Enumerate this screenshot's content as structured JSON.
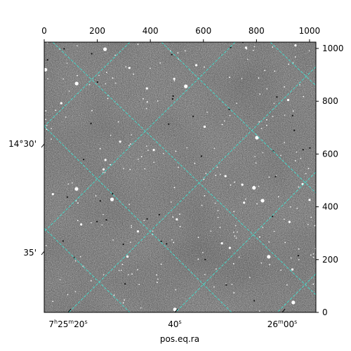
{
  "figure": {
    "xlabel": "pos.eq.ra",
    "ylabel": "",
    "pixel_axes": {
      "x_ticks": [
        "0",
        "200",
        "400",
        "600",
        "800",
        "1000"
      ],
      "x_values": [
        0,
        200,
        400,
        600,
        800,
        1000
      ],
      "y_ticks": [
        "0",
        "200",
        "400",
        "600",
        "800",
        "1000"
      ],
      "y_values": [
        0,
        200,
        400,
        600,
        800,
        1000
      ],
      "xlim": [
        0,
        1024
      ],
      "ylim": [
        0,
        1024
      ]
    },
    "world_axes": {
      "ra_ticks": [
        {
          "h": "7",
          "hs": "h",
          "m": "25",
          "ms": "m",
          "s": "20",
          "ss": "s"
        },
        {
          "h": "",
          "hs": "",
          "m": "",
          "ms": "",
          "s": "40",
          "ss": "s"
        },
        {
          "h": "",
          "hs": "",
          "m": "26",
          "ms": "m",
          "s": "00",
          "ss": "s"
        }
      ],
      "dec_ticks": [
        "14°30'",
        "35'"
      ]
    },
    "grid": {
      "on": true,
      "color": "#40e0d0",
      "style": "dashed"
    },
    "image": {
      "colormap": "gray",
      "content": "star field"
    }
  }
}
